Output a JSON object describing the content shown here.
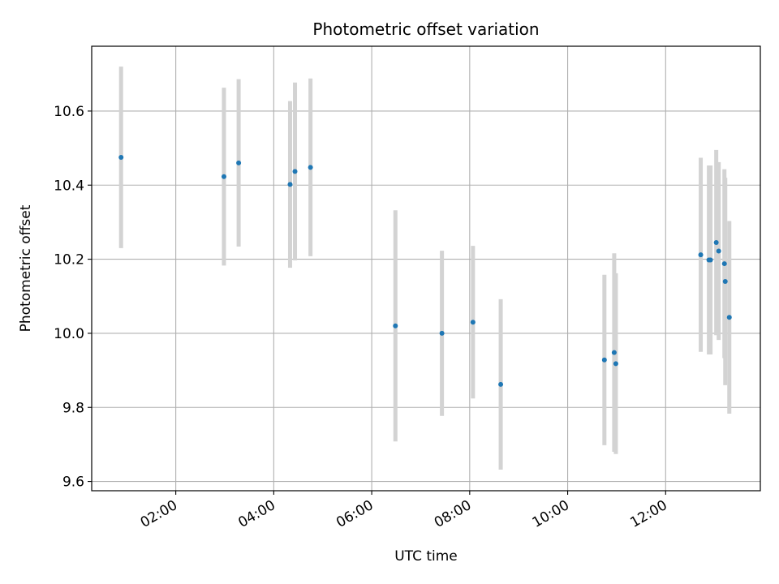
{
  "chart_data": {
    "type": "scatter",
    "title": "Photometric offset variation",
    "xlabel": "UTC time",
    "ylabel": "Photometric offset",
    "xlim": [
      "00:17",
      "13:56"
    ],
    "ylim": [
      9.575,
      10.775
    ],
    "xticks": [
      "02:00",
      "04:00",
      "06:00",
      "08:00",
      "10:00",
      "12:00"
    ],
    "yticks": [
      9.6,
      9.8,
      10.0,
      10.2,
      10.4,
      10.6
    ],
    "ytick_labels": [
      "9.6",
      "9.8",
      "10.0",
      "10.2",
      "10.4",
      "10.6"
    ],
    "grid": true,
    "marker_color": "#1f77b4",
    "errorbar_color": "#d3d3d3",
    "points": [
      {
        "x": "00:53",
        "y": 10.475,
        "err": 0.245
      },
      {
        "x": "02:59",
        "y": 10.423,
        "err": 0.24
      },
      {
        "x": "03:17",
        "y": 10.46,
        "err": 0.226
      },
      {
        "x": "04:20",
        "y": 10.402,
        "err": 0.225
      },
      {
        "x": "04:26",
        "y": 10.437,
        "err": 0.24
      },
      {
        "x": "04:45",
        "y": 10.448,
        "err": 0.24
      },
      {
        "x": "06:29",
        "y": 10.02,
        "err": 0.312
      },
      {
        "x": "07:26",
        "y": 10.0,
        "err": 0.223
      },
      {
        "x": "08:04",
        "y": 10.03,
        "err": 0.206
      },
      {
        "x": "08:38",
        "y": 9.862,
        "err": 0.23
      },
      {
        "x": "10:45",
        "y": 9.928,
        "err": 0.23
      },
      {
        "x": "10:57",
        "y": 9.948,
        "err": 0.268
      },
      {
        "x": "10:59",
        "y": 9.918,
        "err": 0.244
      },
      {
        "x": "12:43",
        "y": 10.212,
        "err": 0.262
      },
      {
        "x": "12:53",
        "y": 10.198,
        "err": 0.255
      },
      {
        "x": "12:55",
        "y": 10.198,
        "err": 0.255
      },
      {
        "x": "13:02",
        "y": 10.245,
        "err": 0.25
      },
      {
        "x": "13:05",
        "y": 10.222,
        "err": 0.24
      },
      {
        "x": "13:12",
        "y": 10.188,
        "err": 0.255
      },
      {
        "x": "13:13",
        "y": 10.14,
        "err": 0.28
      },
      {
        "x": "13:18",
        "y": 10.043,
        "err": 0.26
      }
    ]
  }
}
